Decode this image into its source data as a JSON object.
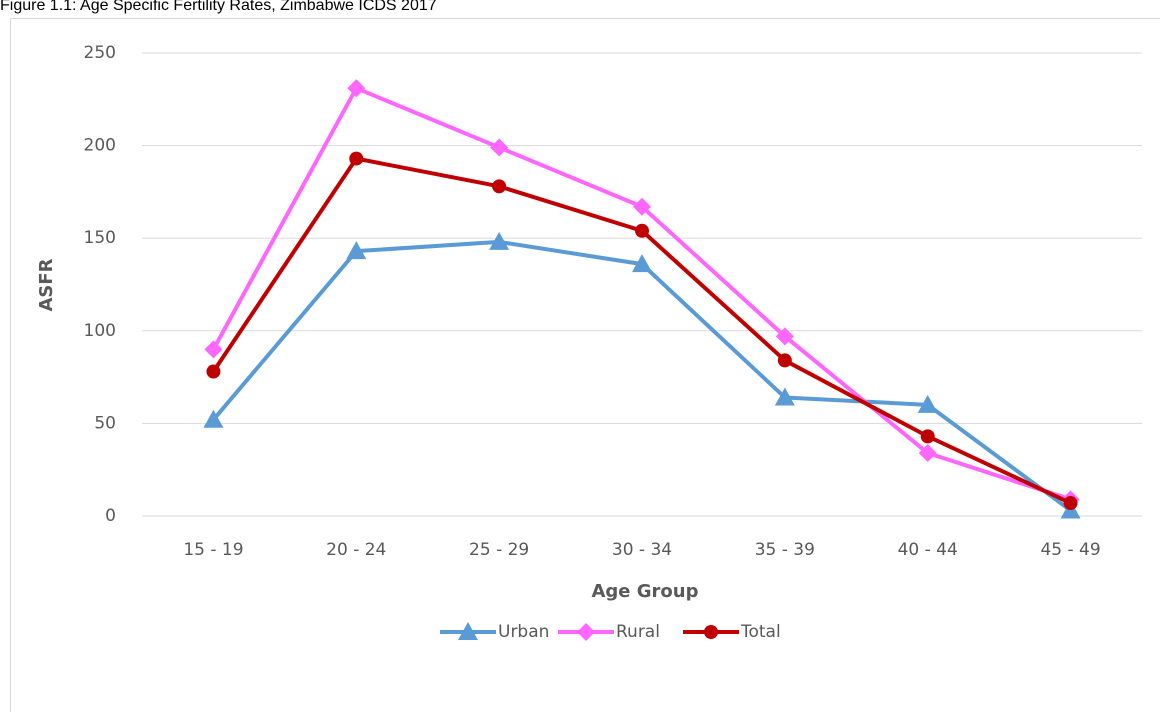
{
  "chart_data": {
    "type": "line",
    "title": "Figure 1.1: Age Specific Fertility Rates, Zimbabwe ICDS 2017",
    "x_label": "Age Group",
    "y_label": "ASFR",
    "categories": [
      "15 - 19",
      "20 - 24",
      "25 - 29",
      "30 - 34",
      "35 - 39",
      "40 - 44",
      "45 - 49"
    ],
    "series": [
      {
        "name": "Urban",
        "color": "#5b9bd5",
        "marker": "triangle",
        "values": [
          52,
          143,
          148,
          136,
          64,
          60,
          3
        ]
      },
      {
        "name": "Rural",
        "color": "#ff66ff",
        "marker": "diamond",
        "values": [
          90,
          231,
          199,
          167,
          97,
          34,
          9
        ]
      },
      {
        "name": "Total",
        "color": "#c00000",
        "marker": "circle",
        "values": [
          78,
          193,
          178,
          154,
          84,
          43,
          7
        ]
      }
    ],
    "ylim": [
      0,
      250
    ],
    "yticks": [
      0,
      50,
      100,
      150,
      200,
      250
    ],
    "grid": true,
    "legend": "bottom"
  }
}
